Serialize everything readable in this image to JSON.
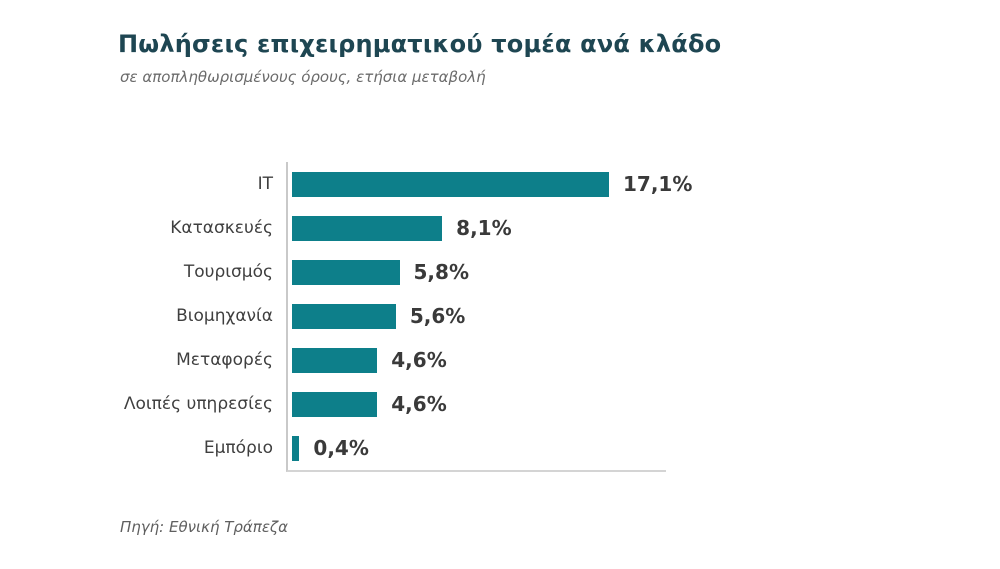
{
  "page": {
    "title": "Πωλήσεις επιχειρηματικού τομέα ανά κλάδο",
    "subtitle": "σε αποπληθωρισμένους όρους, ετήσια μεταβολή",
    "source": "Πηγή: Εθνική Τράπεζα"
  },
  "colors": {
    "bar": "#0d7f8a",
    "title_text": "#1e4652",
    "axis_line": "#c9c9c9",
    "category_text": "#3f3f3f",
    "value_text": "#3a3a3a"
  },
  "chart_data": {
    "type": "bar",
    "orientation": "horizontal",
    "title": "Πωλήσεις επιχειρηματικού τομέα ανά κλάδο",
    "subtitle": "σε αποπληθωρισμένους όρους, ετήσια μεταβολή",
    "xlabel": "",
    "ylabel": "",
    "categories": [
      "IT",
      "Κατασκευές",
      "Τουρισμός",
      "Βιομηχανία",
      "Μεταφορές",
      "Λοιπές υπηρεσίες",
      "Εμπόριο"
    ],
    "values": [
      17.1,
      8.1,
      5.8,
      5.6,
      4.6,
      4.6,
      0.4
    ],
    "value_labels": [
      "17,1%",
      "8,1%",
      "5,8%",
      "5,6%",
      "4,6%",
      "4,6%",
      "0,4%"
    ],
    "unit": "%",
    "xlim": [
      0,
      18.1
    ],
    "grid": false,
    "legend": false,
    "data_labels": "outside-end",
    "source": "Πηγή: Εθνική Τράπεζα"
  }
}
